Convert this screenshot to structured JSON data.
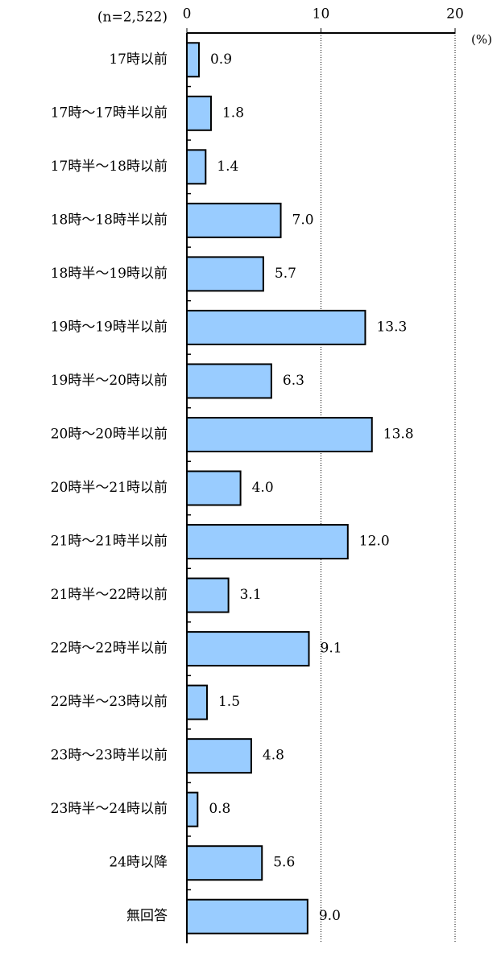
{
  "chart_data": {
    "type": "bar",
    "orientation": "horizontal",
    "subtitle": "(n=2,522)",
    "x_unit_label": "(%)",
    "categories": [
      "17時以前",
      "17時～17時半以前",
      "17時半～18時以前",
      "18時～18時半以前",
      "18時半～19時以前",
      "19時～19時半以前",
      "19時半～20時以前",
      "20時～20時半以前",
      "20時半～21時以前",
      "21時～21時半以前",
      "21時半～22時以前",
      "22時～22時半以前",
      "22時半～23時以前",
      "23時～23時半以前",
      "23時半～24時以前",
      "24時以降",
      "無回答"
    ],
    "values": [
      0.9,
      1.8,
      1.4,
      7.0,
      5.7,
      13.3,
      6.3,
      13.8,
      4.0,
      12.0,
      3.1,
      9.1,
      1.5,
      4.8,
      0.8,
      5.6,
      9.0
    ],
    "value_labels": [
      "0.9",
      "1.8",
      "1.4",
      "7.0",
      "5.7",
      "13.3",
      "6.3",
      "13.8",
      "4.0",
      "12.0",
      "3.1",
      "9.1",
      "1.5",
      "4.8",
      "0.8",
      "5.6",
      "9.0"
    ],
    "color": "#99ccff",
    "edge_color": "#000000",
    "xlim": [
      0,
      20
    ],
    "xticks": [
      0,
      10,
      20
    ],
    "grid": true
  }
}
